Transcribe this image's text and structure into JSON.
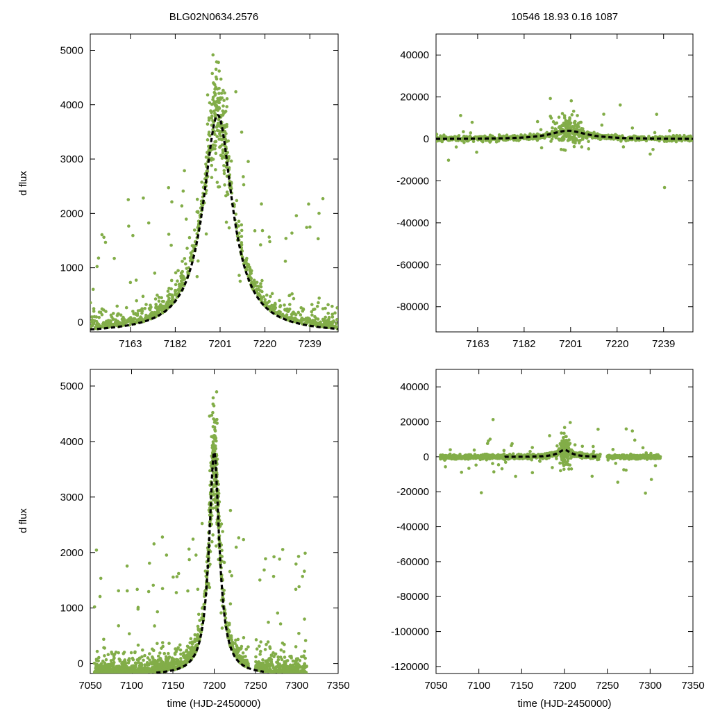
{
  "figure": {
    "title_left": "BLG02N0634.2576",
    "title_right": "10546  18.93  0.16  1087",
    "ylabel": "d flux",
    "xlabel": "time (HJD-2450000)",
    "point_color": "#82ad48",
    "model_color": "#000000"
  },
  "chart_data": [
    {
      "type": "scatter",
      "name": "top-left",
      "description_ranges": "zoomed light curve",
      "xlim": [
        7146,
        7251
      ],
      "ylim": [
        -180,
        5300
      ],
      "xticks": [
        7163,
        7182,
        7201,
        7220,
        7239
      ],
      "yticks": [
        0,
        1000,
        2000,
        3000,
        4000,
        5000
      ],
      "model": {
        "type": "peak",
        "t0": 7200,
        "amp": 4020,
        "width": 7.5,
        "base": -210
      },
      "gap": [
        7185,
        7188
      ],
      "gap2": [
        7214,
        7218
      ]
    },
    {
      "type": "scatter",
      "name": "top-right",
      "xlim": [
        7146,
        7251
      ],
      "ylim": [
        -92000,
        50000
      ],
      "xticks": [
        7163,
        7182,
        7201,
        7220,
        7239
      ],
      "yticks": [
        -80000,
        -60000,
        -40000,
        -20000,
        0,
        20000,
        40000
      ],
      "model": {
        "type": "peak",
        "t0": 7200,
        "amp": 4000,
        "width": 9,
        "base": -100
      }
    },
    {
      "type": "scatter",
      "name": "bottom-left",
      "xlim": [
        7050,
        7350
      ],
      "ylim": [
        -180,
        5300
      ],
      "xticks": [
        7050,
        7100,
        7150,
        7200,
        7250,
        7300,
        7350
      ],
      "yticks": [
        0,
        1000,
        2000,
        3000,
        4000,
        5000
      ],
      "model": {
        "type": "peak",
        "t0": 7200,
        "amp": 4020,
        "width": 7.5,
        "base": -210
      }
    },
    {
      "type": "scatter",
      "name": "bottom-right",
      "xlim": [
        7050,
        7350
      ],
      "ylim": [
        -124000,
        50000
      ],
      "xticks": [
        7050,
        7100,
        7150,
        7200,
        7250,
        7300,
        7350
      ],
      "yticks": [
        -120000,
        -100000,
        -80000,
        -60000,
        -40000,
        -20000,
        0,
        20000,
        40000
      ],
      "model": {
        "type": "peak",
        "t0": 7200,
        "amp": 4000,
        "width": 9,
        "base": -100
      }
    }
  ]
}
